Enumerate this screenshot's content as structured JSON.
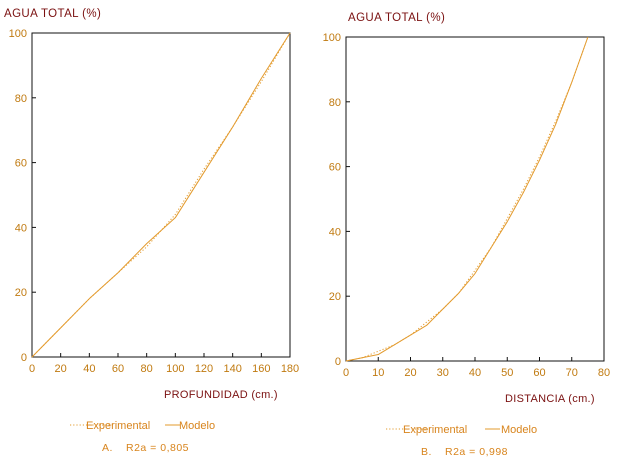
{
  "colors": {
    "axis": "#111111",
    "series": "#e39b2e",
    "title": "#7a1010",
    "ticks": "#c07a10",
    "legend": "#d8841c"
  },
  "chart_data": [
    {
      "type": "line",
      "ylabel": "AGUA TOTAL (%)",
      "xlabel": "PROFUNDIDAD (cm.)",
      "xlim": [
        0,
        180
      ],
      "ylim": [
        0,
        100
      ],
      "xticks": [
        0,
        20,
        40,
        60,
        80,
        100,
        120,
        140,
        160,
        180
      ],
      "yticks": [
        0,
        20,
        40,
        60,
        80,
        100
      ],
      "series": [
        {
          "name": "Experimental",
          "style": "dotted",
          "x": [
            0,
            20,
            40,
            60,
            80,
            100,
            120,
            140,
            160,
            180
          ],
          "y": [
            0,
            9,
            18,
            26,
            34,
            44,
            58,
            71,
            85,
            100
          ]
        },
        {
          "name": "Modelo",
          "style": "solid",
          "x": [
            0,
            20,
            40,
            60,
            80,
            100,
            120,
            140,
            160,
            180
          ],
          "y": [
            0,
            9,
            18,
            26,
            35,
            43,
            57,
            71,
            86,
            100
          ]
        }
      ],
      "legend": {
        "experimental": "Experimental",
        "modelo": "Modelo"
      },
      "caption": {
        "label": "A.",
        "stat": "R2a = 0,805"
      }
    },
    {
      "type": "line",
      "ylabel": "AGUA TOTAL (%)",
      "xlabel": "DISTANCIA (cm.)",
      "xlim": [
        0,
        80
      ],
      "ylim": [
        0,
        100
      ],
      "xticks": [
        0,
        10,
        20,
        30,
        40,
        50,
        60,
        70,
        80
      ],
      "yticks": [
        0,
        20,
        40,
        60,
        80,
        100
      ],
      "series": [
        {
          "name": "Experimental",
          "style": "dotted",
          "x": [
            0,
            5,
            10,
            15,
            20,
            25,
            30,
            35,
            40,
            45,
            50,
            55,
            60,
            65,
            70,
            75
          ],
          "y": [
            0,
            1,
            3,
            5,
            8,
            12,
            16,
            21,
            28,
            35,
            44,
            53,
            63,
            74,
            86,
            100
          ]
        },
        {
          "name": "Modelo",
          "style": "solid",
          "x": [
            0,
            5,
            10,
            15,
            20,
            25,
            30,
            35,
            40,
            45,
            50,
            55,
            60,
            65,
            70,
            75
          ],
          "y": [
            0,
            1,
            2,
            5,
            8,
            11,
            16,
            21,
            27,
            35,
            43,
            52,
            62,
            73,
            86,
            100
          ]
        }
      ],
      "legend": {
        "experimental": "Experimental",
        "modelo": "Modelo"
      },
      "caption": {
        "label": "B.",
        "stat": "R2a = 0,998"
      }
    }
  ]
}
